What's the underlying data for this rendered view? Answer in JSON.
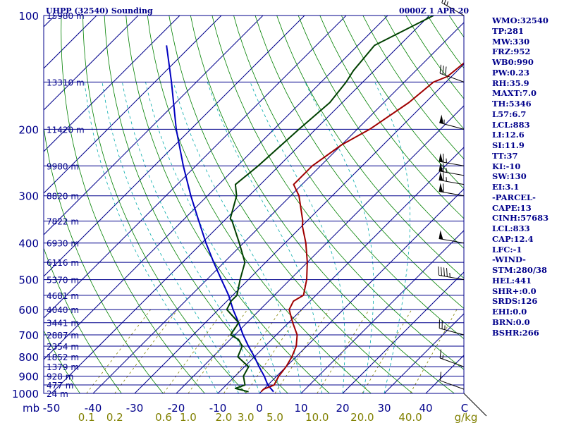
{
  "header": {
    "station": "UHPP (32540) Sounding",
    "valid_time": "0000Z  1 APR 20"
  },
  "indices": [
    "WMO:32540",
    "TP:281",
    "MW:330",
    "FRZ:952",
    "WB0:990",
    "PW:0.23",
    "RH:35.9",
    "MAXT:7.0",
    "TH:5346",
    "L57:6.7",
    "LCL:883",
    "LI:12.6",
    "SI:11.9",
    "TT:37",
    "KI:-10",
    "SW:130",
    "EI:3.1",
    "-PARCEL-",
    "CAPE:13",
    "CINH:57683",
    "LCL:833",
    "CAP:12.4",
    "LFC:-1",
    "-WIND-",
    "STM:280/38",
    "HEL:441",
    "SHR+:0.0",
    "SRDS:126",
    "EHI:0.0",
    "BRN:0.0",
    "BSHR:266"
  ],
  "colors": {
    "axis_text": "#00008b",
    "isobar": "#00008b",
    "temperature": "#a00000",
    "dewpoint": "#004000",
    "parcel": "#0000c0",
    "dry_adiabat": "#008000",
    "moist_adiabat": "#00aaaa",
    "mixing_ratio": "#808000",
    "wind_barb": "#000000"
  },
  "chart_data": {
    "type": "skew-t",
    "pressure_axis": {
      "unit_label": "mb",
      "levels": [
        100,
        200,
        300,
        400,
        500,
        600,
        700,
        800,
        900,
        1000
      ],
      "range": [
        1000,
        100
      ],
      "scale": "log"
    },
    "temperature_axis": {
      "unit_label": "C",
      "ticks": [
        -50,
        -40,
        -30,
        -20,
        -10,
        0,
        10,
        20,
        30,
        40
      ]
    },
    "mixing_ratio_axis": {
      "unit_label": "g/kg",
      "ticks": [
        "0.1",
        "0.2",
        "0.6",
        "1.0",
        "2.0",
        "3.0",
        "5.0",
        "10.0",
        "20.0",
        "40.0"
      ]
    },
    "height_labels": [
      {
        "p": 100,
        "label": "15980 m"
      },
      {
        "p": 150,
        "label": "13310 m"
      },
      {
        "p": 200,
        "label": "11420 m"
      },
      {
        "p": 250,
        "label": "9980 m"
      },
      {
        "p": 300,
        "label": "8820 m"
      },
      {
        "p": 350,
        "label": "7822 m"
      },
      {
        "p": 400,
        "label": "6930 m"
      },
      {
        "p": 450,
        "label": "6116 m"
      },
      {
        "p": 500,
        "label": "5370 m"
      },
      {
        "p": 550,
        "label": "4681 m"
      },
      {
        "p": 600,
        "label": "4040 m"
      },
      {
        "p": 650,
        "label": "3441 m"
      },
      {
        "p": 700,
        "label": "2887 m"
      },
      {
        "p": 750,
        "label": "2354 m"
      },
      {
        "p": 800,
        "label": "1852 m"
      },
      {
        "p": 850,
        "label": "1379 m"
      },
      {
        "p": 900,
        "label": "928 m"
      },
      {
        "p": 950,
        "label": "477 m"
      },
      {
        "p": 1000,
        "label": "24 m"
      }
    ],
    "temperature": [
      {
        "p": 990,
        "t": 0.0
      },
      {
        "p": 975,
        "t": 0.0
      },
      {
        "p": 950,
        "t": 1.5
      },
      {
        "p": 925,
        "t": 1.0
      },
      {
        "p": 900,
        "t": 0.5
      },
      {
        "p": 850,
        "t": 0.0
      },
      {
        "p": 800,
        "t": -1.0
      },
      {
        "p": 750,
        "t": -2.5
      },
      {
        "p": 700,
        "t": -5.0
      },
      {
        "p": 650,
        "t": -9.0
      },
      {
        "p": 600,
        "t": -13.0
      },
      {
        "p": 570,
        "t": -14.0
      },
      {
        "p": 550,
        "t": -13.0
      },
      {
        "p": 500,
        "t": -16.0
      },
      {
        "p": 450,
        "t": -20.0
      },
      {
        "p": 400,
        "t": -25.0
      },
      {
        "p": 360,
        "t": -30.0
      },
      {
        "p": 350,
        "t": -31.0
      },
      {
        "p": 300,
        "t": -38.0
      },
      {
        "p": 280,
        "t": -42.0
      },
      {
        "p": 250,
        "t": -42.0
      },
      {
        "p": 220,
        "t": -40.0
      },
      {
        "p": 200,
        "t": -37.0
      },
      {
        "p": 170,
        "t": -34.0
      },
      {
        "p": 150,
        "t": -33.0
      },
      {
        "p": 145,
        "t": -31.0
      },
      {
        "p": 130,
        "t": -30.0
      },
      {
        "p": 115,
        "t": -25.0
      },
      {
        "p": 102,
        "t": -14.0
      },
      {
        "p": 100,
        "t": -15.0
      }
    ],
    "dewpoint": [
      {
        "p": 990,
        "t": -3.0
      },
      {
        "p": 970,
        "t": -7.0
      },
      {
        "p": 950,
        "t": -5.5
      },
      {
        "p": 900,
        "t": -8.0
      },
      {
        "p": 850,
        "t": -9.0
      },
      {
        "p": 800,
        "t": -14.0
      },
      {
        "p": 750,
        "t": -15.5
      },
      {
        "p": 720,
        "t": -18.0
      },
      {
        "p": 700,
        "t": -21.0
      },
      {
        "p": 650,
        "t": -22.0
      },
      {
        "p": 600,
        "t": -28.0
      },
      {
        "p": 570,
        "t": -29.0
      },
      {
        "p": 550,
        "t": -29.0
      },
      {
        "p": 500,
        "t": -32.0
      },
      {
        "p": 450,
        "t": -35.0
      },
      {
        "p": 400,
        "t": -41.0
      },
      {
        "p": 350,
        "t": -48.0
      },
      {
        "p": 345,
        "t": -49.0
      },
      {
        "p": 300,
        "t": -53.0
      },
      {
        "p": 280,
        "t": -56.0
      },
      {
        "p": 250,
        "t": -55.0
      },
      {
        "p": 200,
        "t": -54.0
      },
      {
        "p": 170,
        "t": -53.0
      },
      {
        "p": 150,
        "t": -54.0
      },
      {
        "p": 140,
        "t": -55.0
      },
      {
        "p": 120,
        "t": -56.0
      },
      {
        "p": 100,
        "t": -49.0
      }
    ],
    "parcel_path": [
      {
        "p": 990,
        "t": 3.0
      },
      {
        "p": 950,
        "t": 0.0
      },
      {
        "p": 900,
        "t": -3.0
      },
      {
        "p": 850,
        "t": -6.5
      },
      {
        "p": 800,
        "t": -10.0
      },
      {
        "p": 750,
        "t": -14.0
      },
      {
        "p": 700,
        "t": -18.0
      },
      {
        "p": 650,
        "t": -22.0
      },
      {
        "p": 600,
        "t": -26.5
      },
      {
        "p": 550,
        "t": -31.0
      },
      {
        "p": 500,
        "t": -36.5
      },
      {
        "p": 450,
        "t": -42.5
      },
      {
        "p": 400,
        "t": -49.0
      },
      {
        "p": 350,
        "t": -56.0
      },
      {
        "p": 300,
        "t": -64.0
      },
      {
        "p": 250,
        "t": -73.0
      },
      {
        "p": 200,
        "t": -83.5
      },
      {
        "p": 150,
        "t": -96.0
      },
      {
        "p": 120,
        "t": -106.0
      }
    ],
    "wind_barbs": [
      {
        "p": 975,
        "dir": 290,
        "spd": 10
      },
      {
        "p": 850,
        "dir": 290,
        "spd": 15
      },
      {
        "p": 700,
        "dir": 285,
        "spd": 25
      },
      {
        "p": 500,
        "dir": 280,
        "spd": 45
      },
      {
        "p": 400,
        "dir": 280,
        "spd": 50
      },
      {
        "p": 300,
        "dir": 280,
        "spd": 60
      },
      {
        "p": 280,
        "dir": 280,
        "spd": 65
      },
      {
        "p": 265,
        "dir": 280,
        "spd": 65
      },
      {
        "p": 250,
        "dir": 280,
        "spd": 65
      },
      {
        "p": 200,
        "dir": 285,
        "spd": 55
      },
      {
        "p": 150,
        "dir": 290,
        "spd": 30
      },
      {
        "p": 100,
        "dir": 300,
        "spd": 25
      }
    ],
    "dry_adiabats_K": [
      230,
      240,
      250,
      260,
      270,
      280,
      290,
      300,
      310,
      320,
      330,
      340,
      350,
      360,
      370,
      380,
      390,
      400,
      410,
      420,
      430,
      440,
      450,
      460,
      470,
      480
    ],
    "moist_adiabats_C": [
      -10,
      -5,
      0,
      5,
      10,
      15,
      20,
      25,
      30
    ],
    "mixing_ratios_gkg": [
      0.1,
      0.2,
      0.6,
      1.0,
      2.0,
      3.0,
      5.0,
      10.0,
      20.0,
      40.0
    ]
  }
}
